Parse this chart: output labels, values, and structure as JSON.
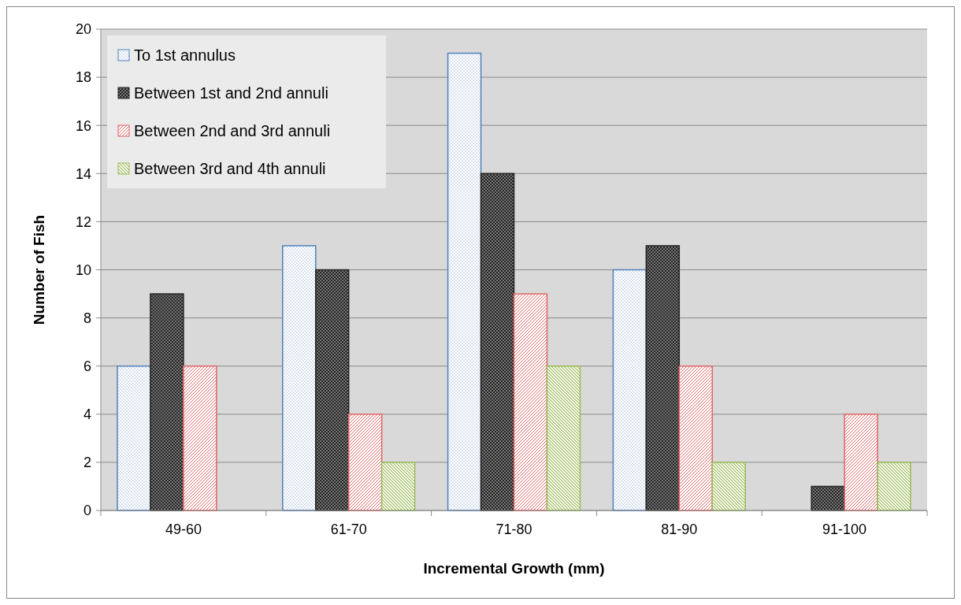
{
  "chart_data": {
    "type": "bar",
    "xlabel": "Incremental Growth (mm)",
    "ylabel": "Number of Fish",
    "categories": [
      "49-60",
      "61-70",
      "71-80",
      "81-90",
      "91-100"
    ],
    "series": [
      {
        "name": "To 1st annulus",
        "color": "#4f81bd",
        "values": [
          6,
          11,
          19,
          10,
          0
        ]
      },
      {
        "name": "Between 1st and 2nd annuli",
        "color": "#262626",
        "values": [
          9,
          10,
          14,
          11,
          1
        ]
      },
      {
        "name": "Between 2nd and 3rd annuli",
        "color": "#e06666",
        "values": [
          6,
          4,
          9,
          6,
          4
        ]
      },
      {
        "name": "Between 3rd and 4th annuli",
        "color": "#9bbb59",
        "values": [
          0,
          2,
          6,
          2,
          2
        ]
      }
    ],
    "ylim": [
      0,
      20
    ],
    "yticks": [
      0,
      2,
      4,
      6,
      8,
      10,
      12,
      14,
      16,
      18,
      20
    ],
    "grid": "y",
    "legend": "top left"
  }
}
